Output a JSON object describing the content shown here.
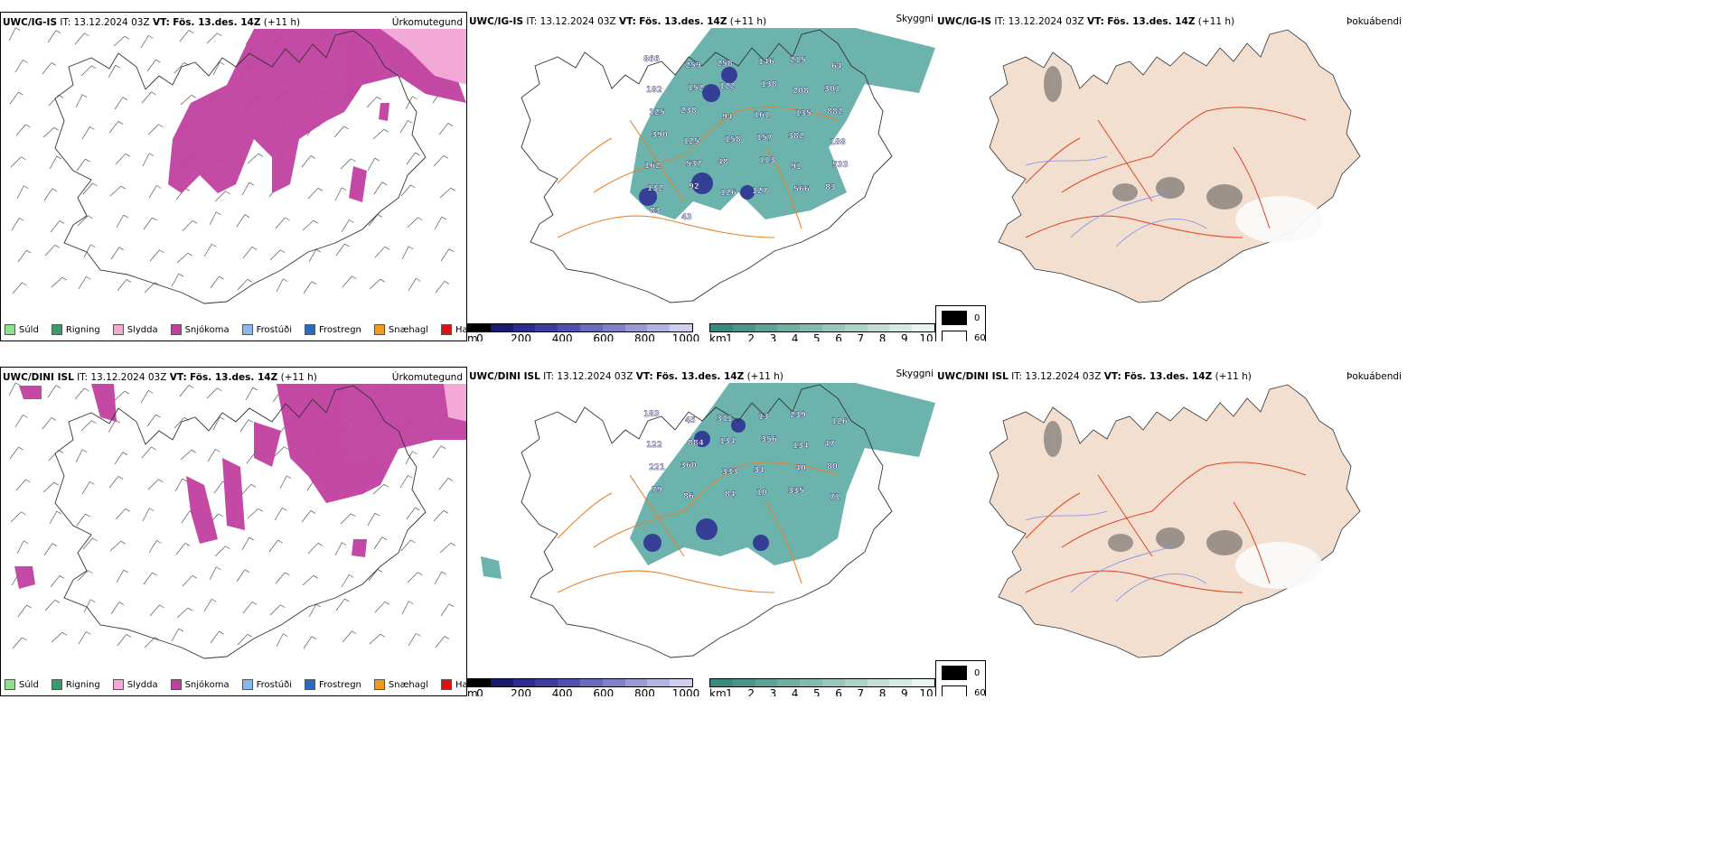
{
  "rows": [
    {
      "model": "UWC/IG-IS",
      "it_label": "IT:",
      "it_value": "13.12.2024 03Z",
      "vt_label": "VT:",
      "vt_value": "Fös. 13.des. 14Z",
      "lead": "(+11 h)",
      "precip_label": "Úrkomutegund",
      "cloud_label": "Skyggni",
      "fog_label": "Þokuábendi",
      "cloud_numbers": [
        "866",
        "259",
        "258",
        "146",
        "215",
        "64",
        "182",
        "152",
        "122",
        "138",
        "208",
        "301",
        "125",
        "238",
        "94",
        "161",
        "135",
        "882",
        "390",
        "125",
        "158",
        "157",
        "382",
        "188",
        "162",
        "537",
        "48",
        "113",
        "91",
        "533",
        "132",
        "92",
        "126",
        "127",
        "566",
        "83",
        "83",
        "43"
      ]
    },
    {
      "model": "UWC/DINI ISL",
      "it_label": "IT:",
      "it_value": "13.12.2024 03Z",
      "vt_label": "VT:",
      "vt_value": "Fös. 13.des. 14Z",
      "lead": "(+11 h)",
      "precip_label": "Úrkomutegund",
      "cloud_label": "Skyggni",
      "fog_label": "Þokuábendi",
      "cloud_numbers": [
        "183",
        "45",
        "311",
        "13",
        "239",
        "126",
        "122",
        "884",
        "134",
        "356",
        "134",
        "47",
        "221",
        "360",
        "333",
        "34",
        "40",
        "80",
        "79",
        "86",
        "84",
        "10",
        "335",
        "71"
      ]
    }
  ],
  "precip_legend": [
    {
      "label": "Súld",
      "color": "#8fe08f"
    },
    {
      "label": "Rigning",
      "color": "#3a9a6a"
    },
    {
      "label": "Slydda",
      "color": "#f2a9d8"
    },
    {
      "label": "Snjókoma",
      "color": "#c040a0"
    },
    {
      "label": "Frostúði",
      "color": "#8ab8ee"
    },
    {
      "label": "Frostregn",
      "color": "#2a6ac0"
    },
    {
      "label": "Snæhagl",
      "color": "#f09a20"
    },
    {
      "label": "Haglél",
      "color": "#e01010"
    }
  ],
  "cloudbase_legend": {
    "unit": "m",
    "ticks": [
      "0",
      "200",
      "400",
      "600",
      "800",
      "1000"
    ]
  },
  "visibility_legend": {
    "unit": "km",
    "ticks": [
      "1",
      "2",
      "3",
      "4",
      "5",
      "6",
      "7",
      "8",
      "9",
      "10"
    ]
  },
  "fog_legend": {
    "values": [
      "0",
      "60"
    ]
  },
  "colors": {
    "snow": "#c040a0",
    "sleet": "#f2a9d8",
    "cloud_teal": "#3a9a90",
    "cloudbase_blue": "#2a2a90",
    "road_orange": "#e8822a",
    "land_beige": "#f3dfd0",
    "road_red": "#dd4422",
    "river_blue": "#7b8cf0"
  }
}
